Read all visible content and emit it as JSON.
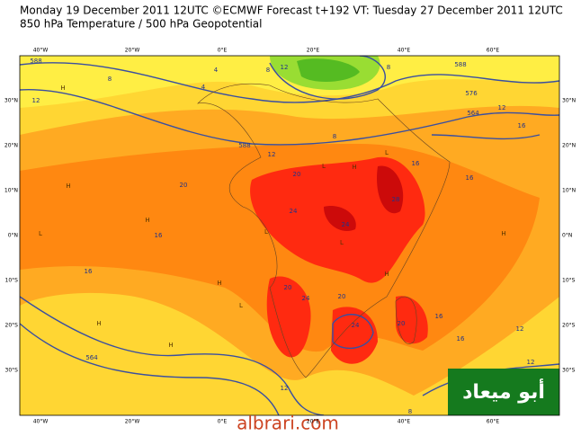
{
  "header": {
    "line1": "Monday 19 December 2011 12UTC ©ECMWF Forecast t+192 VT: Tuesday 27 December 2011 12UTC",
    "line2": "850 hPa Temperature / 500 hPa Geopotential"
  },
  "axes": {
    "lon_top": [
      "40°W",
      "20°W",
      "0°E",
      "20°E",
      "40°E",
      "60°E"
    ],
    "lon_bottom": [
      "40°W",
      "20°W",
      "0°E",
      "20°E",
      "40°E",
      "60°E"
    ],
    "lat_left": [
      "30°N",
      "20°N",
      "10°N",
      "0°N",
      "10°S",
      "20°S",
      "30°S"
    ],
    "lat_right": [
      "30°N",
      "20°N",
      "10°N",
      "0°N",
      "10°S",
      "20°S",
      "30°S"
    ]
  },
  "contour_labels": [
    "588",
    "8",
    "12",
    "4",
    "4",
    "8",
    "12",
    "8",
    "588",
    "576",
    "564",
    "12",
    "16",
    "8",
    "12",
    "588",
    "16",
    "16",
    "20",
    "20",
    "24",
    "24",
    "28",
    "16",
    "16",
    "20",
    "24",
    "20",
    "24",
    "20",
    "16",
    "16",
    "12",
    "564",
    "12",
    "12",
    "8"
  ],
  "pressure_marks": [
    "H",
    "H",
    "L",
    "H",
    "L",
    "H",
    "H",
    "L",
    "H",
    "L",
    "H",
    "L",
    "H",
    "L",
    "H"
  ],
  "logo": "أبو ميعاد",
  "watermark": "albrari.com"
}
